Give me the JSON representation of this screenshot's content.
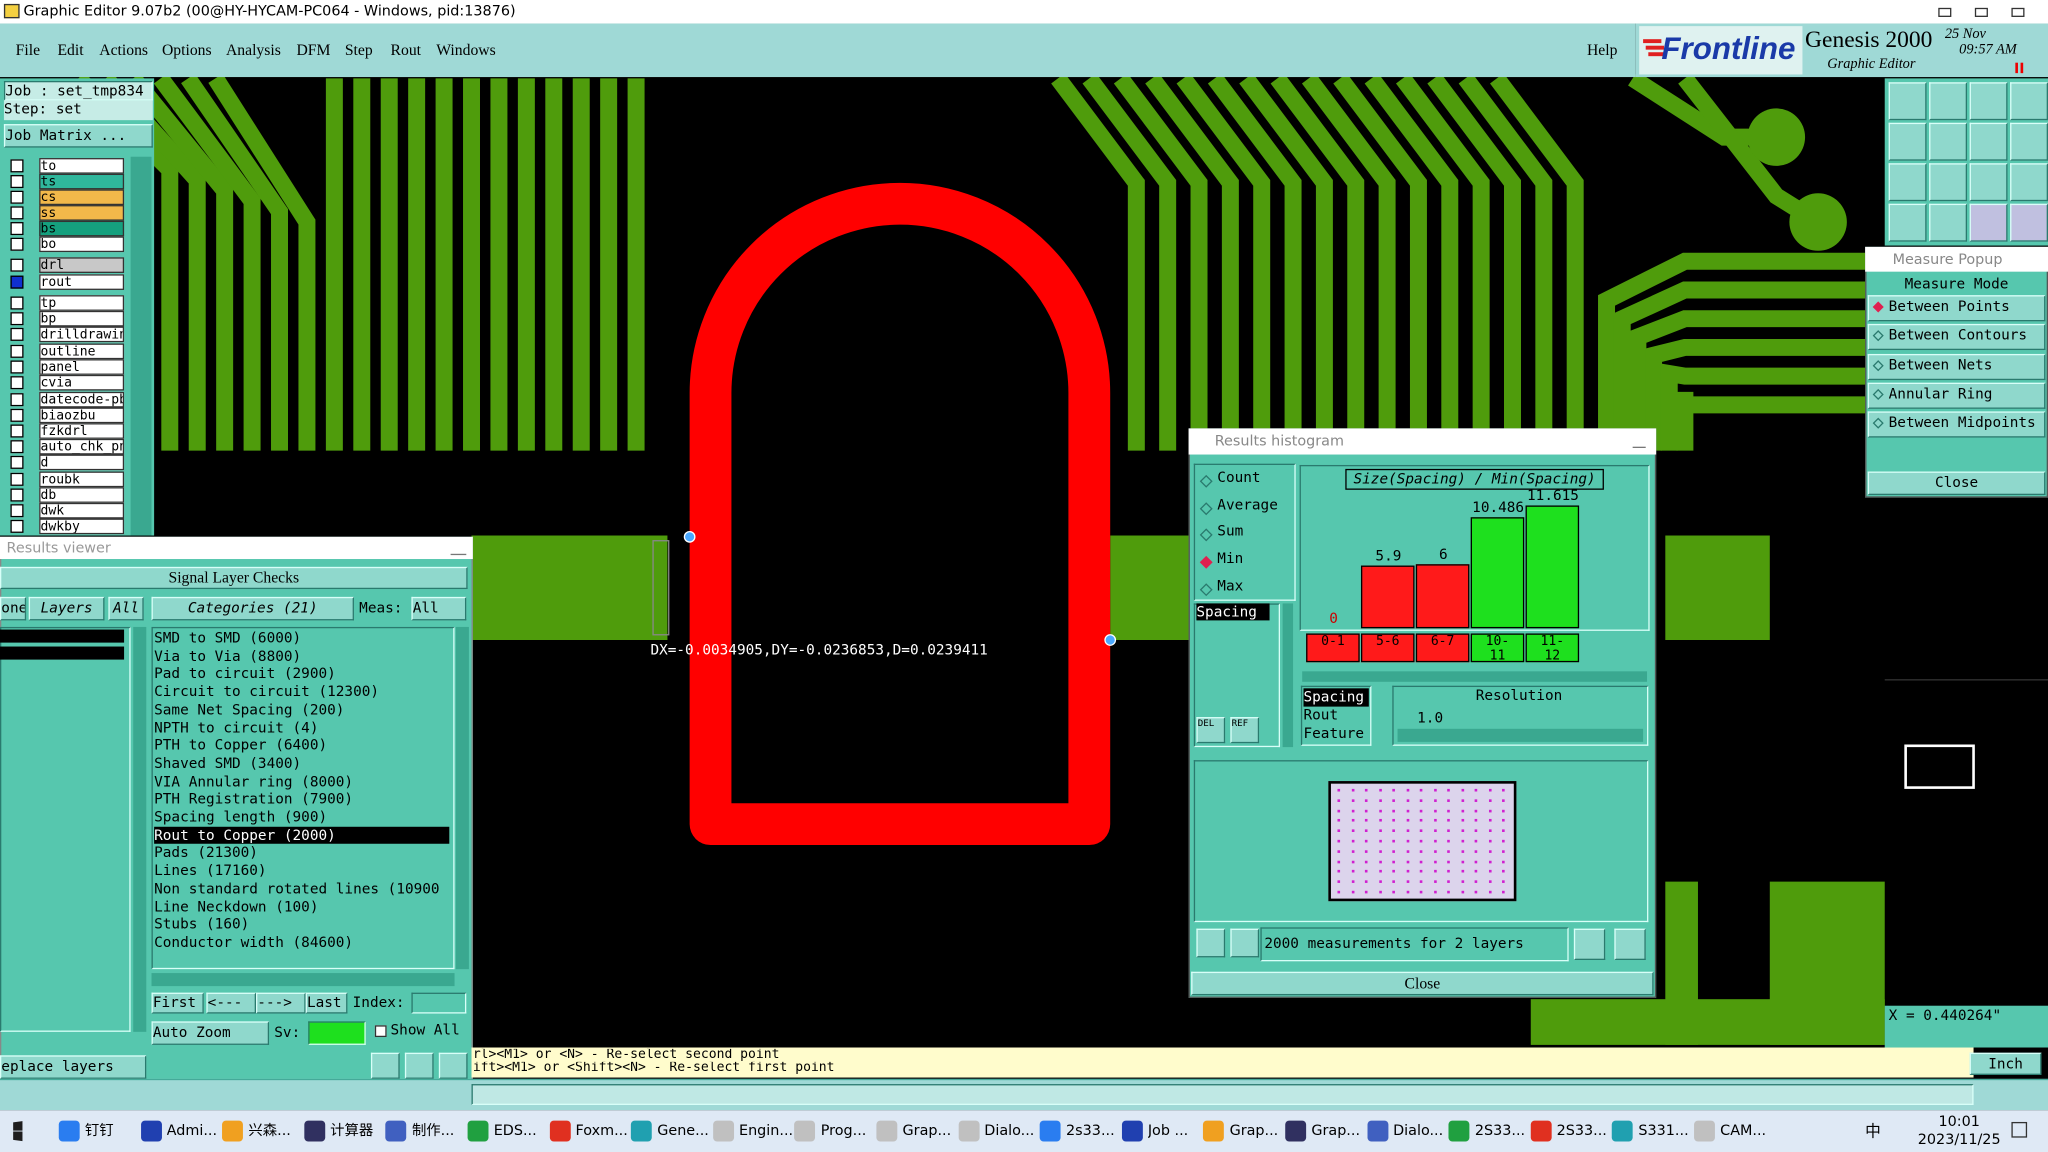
{
  "window": {
    "title": "Graphic Editor 9.07b2 (00@HY-HYCAM-PC064 - Windows, pid:13876)"
  },
  "menu": [
    "File",
    "Edit",
    "Actions",
    "Options",
    "Analysis",
    "DFM",
    "Step",
    "Rout",
    "Windows"
  ],
  "help": "Help",
  "brand": {
    "logo": "Frontline",
    "product": "Genesis 2000",
    "subtitle": "Graphic Editor",
    "date": "25 Nov",
    "time": "09:57 AM"
  },
  "job": {
    "job": "Job : set_tmp834",
    "step": "Step: set",
    "matrix": "Job Matrix ..."
  },
  "layers": [
    {
      "name": "to",
      "color": "#ffffff"
    },
    {
      "name": "ts",
      "color": "#2fb79c"
    },
    {
      "name": "cs",
      "color": "#f2b84a"
    },
    {
      "name": "ss",
      "color": "#f2b84a"
    },
    {
      "name": "bs",
      "color": "#15a07e"
    },
    {
      "name": "bo",
      "color": "#ffffff"
    },
    {
      "name": "drl",
      "color": "#c8c8c8"
    },
    {
      "name": "rout",
      "color": "#ffffff",
      "checked": true
    },
    {
      "name": "tp",
      "color": "#ffffff"
    },
    {
      "name": "bp",
      "color": "#ffffff"
    },
    {
      "name": "drilldrawing",
      "color": "#ffffff"
    },
    {
      "name": "outline",
      "color": "#ffffff"
    },
    {
      "name": "panel",
      "color": "#ffffff"
    },
    {
      "name": "cvia",
      "color": "#ffffff"
    },
    {
      "name": "datecode-pbe",
      "color": "#ffffff"
    },
    {
      "name": "biaozbu",
      "color": "#ffffff"
    },
    {
      "name": "fzkdrl",
      "color": "#ffffff"
    },
    {
      "name": "auto_chk_pn",
      "color": "#ffffff"
    },
    {
      "name": "d",
      "color": "#ffffff"
    },
    {
      "name": "roubk",
      "color": "#ffffff"
    },
    {
      "name": "db",
      "color": "#ffffff"
    },
    {
      "name": "dwk",
      "color": "#ffffff"
    },
    {
      "name": "dwkby",
      "color": "#ffffff"
    }
  ],
  "results_viewer": {
    "title": "Results viewer",
    "header": "Signal Layer Checks",
    "tab_none": "one",
    "layers": "Layers",
    "layers_all": "All",
    "categories_title": "Categories (21)",
    "meas": "Meas:",
    "meas_value": "All",
    "categories": [
      "SMD to SMD (6000)",
      "Via to Via (8800)",
      "Pad to circuit (2900)",
      "Circuit to circuit (12300)",
      "Same Net Spacing (200)",
      "NPTH to circuit (4)",
      "PTH to Copper (6400)",
      "Shaved SMD (3400)",
      "VIA Annular ring (8000)",
      "PTH Registration (7900)",
      "Spacing length (900)",
      "Rout to Copper (2000)",
      "Pads (21300)",
      "Lines (17160)",
      "Non standard rotated lines (10900",
      "Line Neckdown (100)",
      "Stubs (160)",
      "Conductor width (84600)"
    ],
    "selected_category": 11,
    "first": "First",
    "prev": "<---",
    "next": "--->",
    "last": "Last",
    "index": "Index:",
    "auto_zoom": "Auto Zoom",
    "sv": "Sv:",
    "show_all": "Show All",
    "replace_layers": "eplace layers"
  },
  "measurement": "DX=-0.0034905,DY=-0.0236853,D=0.0239411",
  "status": [
    "rl><M1> or <N> - Re-select second point",
    "ift><M1> or <Shift><N> - Re-select first point"
  ],
  "histogram": {
    "title": "Results histogram",
    "options": [
      {
        "label": "Count",
        "on": false
      },
      {
        "label": "Average",
        "on": false
      },
      {
        "label": "Sum",
        "on": false
      },
      {
        "label": "Min",
        "on": true
      },
      {
        "label": "Max",
        "on": false
      }
    ],
    "list": [
      "Spacing"
    ],
    "del": "DEL",
    "ref": "REF",
    "chart": {
      "type": "bar",
      "title": "Size(Spacing) / Min(Spacing)",
      "categories": [
        "0-1",
        "5-6",
        "6-7",
        "10-11",
        "11-12"
      ],
      "values": [
        0,
        5.9,
        6,
        10.486,
        11.615
      ],
      "colors": [
        "#ff1a1a",
        "#ff1a1a",
        "#ff1a1a",
        "#1ee01e",
        "#1ee01e"
      ]
    },
    "attributes": [
      "Spacing",
      "Rout",
      "Feature"
    ],
    "resolution_label": "Resolution",
    "resolution": "1.0",
    "summary": "2000 measurements for 2 layers",
    "close": "Close"
  },
  "measure_popup": {
    "title": "Measure Popup",
    "header": "Measure Mode",
    "modes": [
      {
        "label": "Between Points",
        "on": true
      },
      {
        "label": "Between Contours",
        "on": false
      },
      {
        "label": "Between Nets",
        "on": false
      },
      {
        "label": "Annular Ring",
        "on": false
      },
      {
        "label": "Between Midpoints",
        "on": false
      }
    ],
    "close": "Close"
  },
  "coords": {
    "x": "X = 0.440264\"",
    "unit": "Inch"
  },
  "taskbar": {
    "items": [
      "钉钉",
      "Admi...",
      "兴森...",
      "计算器",
      "制作...",
      "EDS...",
      "Foxm...",
      "Gene...",
      "Engin...",
      "Prog...",
      "Grap...",
      "Dialo...",
      "2s33...",
      "Job ...",
      "Grap...",
      "Grap...",
      "Dialo...",
      "2S33...",
      "2S33...",
      "S331...",
      "CAM..."
    ],
    "ime": "中",
    "time": "10:01",
    "date": "2023/11/25"
  }
}
